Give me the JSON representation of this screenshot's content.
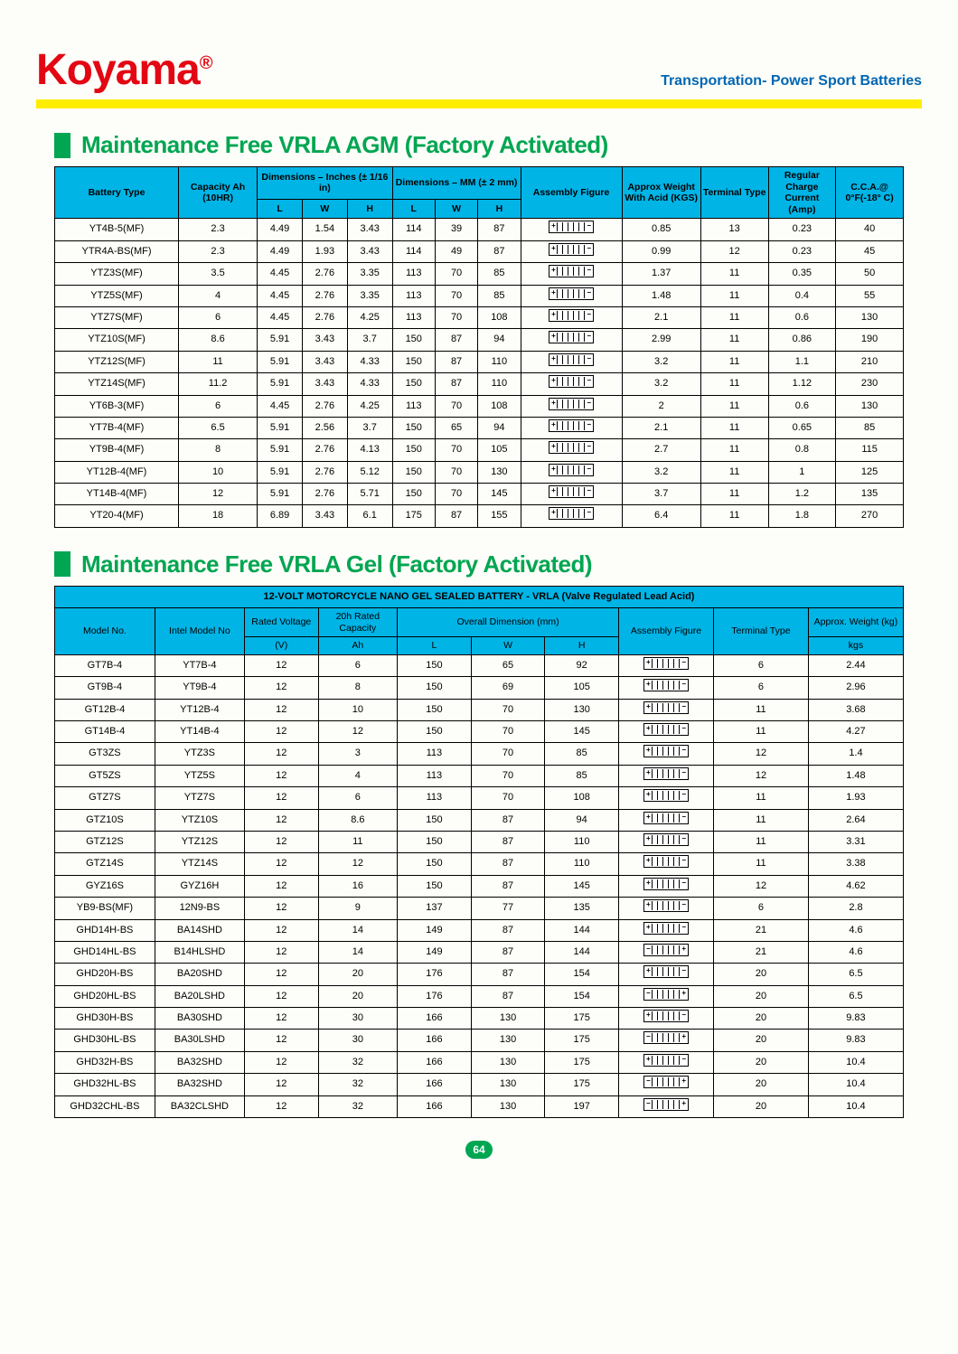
{
  "brand": "Koyama",
  "brand_symbol": "®",
  "tagline": "Transportation- Power Sport Batteries",
  "page_number": "64",
  "colors": {
    "brand_red": "#e30613",
    "tagline_blue": "#0066b3",
    "yellow_bar": "#ffed00",
    "green": "#00a651",
    "header_cyan": "#00b4e6"
  },
  "section1": {
    "title": "Maintenance Free VRLA AGM (Factory Activated)",
    "headers": {
      "battery_type": "Battery Type",
      "capacity": "Capacity Ah (10HR)",
      "dim_in": "Dimensions – Inches (± 1/16 in)",
      "dim_mm": "Dimensions – MM (± 2 mm)",
      "L": "L",
      "W": "W",
      "H": "H",
      "assembly": "Assembly Figure",
      "weight": "Approx Weight With Acid (KGS)",
      "terminal": "Terminal Type",
      "charge": "Regular Charge Current (Amp)",
      "cca": "C.C.A.@ 0°F(-18° C)"
    },
    "rows": [
      {
        "type": "YT4B-5(MF)",
        "cap": "2.3",
        "li": "4.49",
        "wi": "1.54",
        "hi": "3.43",
        "lm": "114",
        "wm": "39",
        "hm": "87",
        "fig": "lr",
        "wt": "0.85",
        "term": "13",
        "chg": "0.23",
        "cca": "40"
      },
      {
        "type": "YTR4A-BS(MF)",
        "cap": "2.3",
        "li": "4.49",
        "wi": "1.93",
        "hi": "3.43",
        "lm": "114",
        "wm": "49",
        "hm": "87",
        "fig": "lr",
        "wt": "0.99",
        "term": "12",
        "chg": "0.23",
        "cca": "45"
      },
      {
        "type": "YTZ3S(MF)",
        "cap": "3.5",
        "li": "4.45",
        "wi": "2.76",
        "hi": "3.35",
        "lm": "113",
        "wm": "70",
        "hm": "85",
        "fig": "lr",
        "wt": "1.37",
        "term": "11",
        "chg": "0.35",
        "cca": "50"
      },
      {
        "type": "YTZ5S(MF)",
        "cap": "4",
        "li": "4.45",
        "wi": "2.76",
        "hi": "3.35",
        "lm": "113",
        "wm": "70",
        "hm": "85",
        "fig": "lr",
        "wt": "1.48",
        "term": "11",
        "chg": "0.4",
        "cca": "55"
      },
      {
        "type": "YTZ7S(MF)",
        "cap": "6",
        "li": "4.45",
        "wi": "2.76",
        "hi": "4.25",
        "lm": "113",
        "wm": "70",
        "hm": "108",
        "fig": "lr",
        "wt": "2.1",
        "term": "11",
        "chg": "0.6",
        "cca": "130"
      },
      {
        "type": "YTZ10S(MF)",
        "cap": "8.6",
        "li": "5.91",
        "wi": "3.43",
        "hi": "3.7",
        "lm": "150",
        "wm": "87",
        "hm": "94",
        "fig": "lr",
        "wt": "2.99",
        "term": "11",
        "chg": "0.86",
        "cca": "190"
      },
      {
        "type": "YTZ12S(MF)",
        "cap": "11",
        "li": "5.91",
        "wi": "3.43",
        "hi": "4.33",
        "lm": "150",
        "wm": "87",
        "hm": "110",
        "fig": "lr",
        "wt": "3.2",
        "term": "11",
        "chg": "1.1",
        "cca": "210"
      },
      {
        "type": "YTZ14S(MF)",
        "cap": "11.2",
        "li": "5.91",
        "wi": "3.43",
        "hi": "4.33",
        "lm": "150",
        "wm": "87",
        "hm": "110",
        "fig": "lr",
        "wt": "3.2",
        "term": "11",
        "chg": "1.12",
        "cca": "230"
      },
      {
        "type": "YT6B-3(MF)",
        "cap": "6",
        "li": "4.45",
        "wi": "2.76",
        "hi": "4.25",
        "lm": "113",
        "wm": "70",
        "hm": "108",
        "fig": "lr",
        "wt": "2",
        "term": "11",
        "chg": "0.6",
        "cca": "130"
      },
      {
        "type": "YT7B-4(MF)",
        "cap": "6.5",
        "li": "5.91",
        "wi": "2.56",
        "hi": "3.7",
        "lm": "150",
        "wm": "65",
        "hm": "94",
        "fig": "lr",
        "wt": "2.1",
        "term": "11",
        "chg": "0.65",
        "cca": "85"
      },
      {
        "type": "YT9B-4(MF)",
        "cap": "8",
        "li": "5.91",
        "wi": "2.76",
        "hi": "4.13",
        "lm": "150",
        "wm": "70",
        "hm": "105",
        "fig": "lr",
        "wt": "2.7",
        "term": "11",
        "chg": "0.8",
        "cca": "115"
      },
      {
        "type": "YT12B-4(MF)",
        "cap": "10",
        "li": "5.91",
        "wi": "2.76",
        "hi": "5.12",
        "lm": "150",
        "wm": "70",
        "hm": "130",
        "fig": "lr",
        "wt": "3.2",
        "term": "11",
        "chg": "1",
        "cca": "125"
      },
      {
        "type": "YT14B-4(MF)",
        "cap": "12",
        "li": "5.91",
        "wi": "2.76",
        "hi": "5.71",
        "lm": "150",
        "wm": "70",
        "hm": "145",
        "fig": "lr",
        "wt": "3.7",
        "term": "11",
        "chg": "1.2",
        "cca": "135"
      },
      {
        "type": "YT20-4(MF)",
        "cap": "18",
        "li": "6.89",
        "wi": "3.43",
        "hi": "6.1",
        "lm": "175",
        "wm": "87",
        "hm": "155",
        "fig": "lr",
        "wt": "6.4",
        "term": "11",
        "chg": "1.8",
        "cca": "270"
      }
    ]
  },
  "section2": {
    "title": "Maintenance Free VRLA Gel (Factory Activated)",
    "banner": "12-VOLT MOTORCYCLE NANO GEL SEALED BATTERY - VRLA (Valve Regulated Lead Acid)",
    "headers": {
      "model": "Model No.",
      "intel": "Intel Model No",
      "voltage": "Rated Voltage",
      "capacity": "20h Rated Capacity",
      "dim": "Overall Dimension (mm)",
      "assembly": "Assembly Figure",
      "terminal": "Terminal Type",
      "weight": "Approx. Weight (kg)",
      "V": "(V)",
      "Ah": "Ah",
      "L": "L",
      "W": "W",
      "H": "H",
      "kgs": "kgs"
    },
    "rows": [
      {
        "m": "GT7B-4",
        "i": "YT7B-4",
        "v": "12",
        "ah": "6",
        "l": "150",
        "w": "65",
        "h": "92",
        "fig": "lr",
        "t": "6",
        "wt": "2.44"
      },
      {
        "m": "GT9B-4",
        "i": "YT9B-4",
        "v": "12",
        "ah": "8",
        "l": "150",
        "w": "69",
        "h": "105",
        "fig": "lr",
        "t": "6",
        "wt": "2.96"
      },
      {
        "m": "GT12B-4",
        "i": "YT12B-4",
        "v": "12",
        "ah": "10",
        "l": "150",
        "w": "70",
        "h": "130",
        "fig": "lr",
        "t": "11",
        "wt": "3.68"
      },
      {
        "m": "GT14B-4",
        "i": "YT14B-4",
        "v": "12",
        "ah": "12",
        "l": "150",
        "w": "70",
        "h": "145",
        "fig": "lr",
        "t": "11",
        "wt": "4.27"
      },
      {
        "m": "GT3ZS",
        "i": "YTZ3S",
        "v": "12",
        "ah": "3",
        "l": "113",
        "w": "70",
        "h": "85",
        "fig": "lr",
        "t": "12",
        "wt": "1.4"
      },
      {
        "m": "GT5ZS",
        "i": "YTZ5S",
        "v": "12",
        "ah": "4",
        "l": "113",
        "w": "70",
        "h": "85",
        "fig": "lr",
        "t": "12",
        "wt": "1.48"
      },
      {
        "m": "GTZ7S",
        "i": "YTZ7S",
        "v": "12",
        "ah": "6",
        "l": "113",
        "w": "70",
        "h": "108",
        "fig": "lr",
        "t": "11",
        "wt": "1.93"
      },
      {
        "m": "GTZ10S",
        "i": "YTZ10S",
        "v": "12",
        "ah": "8.6",
        "l": "150",
        "w": "87",
        "h": "94",
        "fig": "lr",
        "t": "11",
        "wt": "2.64"
      },
      {
        "m": "GTZ12S",
        "i": "YTZ12S",
        "v": "12",
        "ah": "11",
        "l": "150",
        "w": "87",
        "h": "110",
        "fig": "lr",
        "t": "11",
        "wt": "3.31"
      },
      {
        "m": "GTZ14S",
        "i": "YTZ14S",
        "v": "12",
        "ah": "12",
        "l": "150",
        "w": "87",
        "h": "110",
        "fig": "lr",
        "t": "11",
        "wt": "3.38"
      },
      {
        "m": "GYZ16S",
        "i": "GYZ16H",
        "v": "12",
        "ah": "16",
        "l": "150",
        "w": "87",
        "h": "145",
        "fig": "lr",
        "t": "12",
        "wt": "4.62"
      },
      {
        "m": "YB9-BS(MF)",
        "i": "12N9-BS",
        "v": "12",
        "ah": "9",
        "l": "137",
        "w": "77",
        "h": "135",
        "fig": "lr",
        "t": "6",
        "wt": "2.8"
      },
      {
        "m": "GHD14H-BS",
        "i": "BA14SHD",
        "v": "12",
        "ah": "14",
        "l": "149",
        "w": "87",
        "h": "144",
        "fig": "lr",
        "t": "21",
        "wt": "4.6"
      },
      {
        "m": "GHD14HL-BS",
        "i": "B14HLSHD",
        "v": "12",
        "ah": "14",
        "l": "149",
        "w": "87",
        "h": "144",
        "fig": "rl",
        "t": "21",
        "wt": "4.6"
      },
      {
        "m": "GHD20H-BS",
        "i": "BA20SHD",
        "v": "12",
        "ah": "20",
        "l": "176",
        "w": "87",
        "h": "154",
        "fig": "lr",
        "t": "20",
        "wt": "6.5"
      },
      {
        "m": "GHD20HL-BS",
        "i": "BA20LSHD",
        "v": "12",
        "ah": "20",
        "l": "176",
        "w": "87",
        "h": "154",
        "fig": "rl",
        "t": "20",
        "wt": "6.5"
      },
      {
        "m": "GHD30H-BS",
        "i": "BA30SHD",
        "v": "12",
        "ah": "30",
        "l": "166",
        "w": "130",
        "h": "175",
        "fig": "lr",
        "t": "20",
        "wt": "9.83"
      },
      {
        "m": "GHD30HL-BS",
        "i": "BA30LSHD",
        "v": "12",
        "ah": "30",
        "l": "166",
        "w": "130",
        "h": "175",
        "fig": "rl",
        "t": "20",
        "wt": "9.83"
      },
      {
        "m": "GHD32H-BS",
        "i": "BA32SHD",
        "v": "12",
        "ah": "32",
        "l": "166",
        "w": "130",
        "h": "175",
        "fig": "lr",
        "t": "20",
        "wt": "10.4"
      },
      {
        "m": "GHD32HL-BS",
        "i": "BA32SHD",
        "v": "12",
        "ah": "32",
        "l": "166",
        "w": "130",
        "h": "175",
        "fig": "rl",
        "t": "20",
        "wt": "10.4"
      },
      {
        "m": "GHD32CHL-BS",
        "i": "BA32CLSHD",
        "v": "12",
        "ah": "32",
        "l": "166",
        "w": "130",
        "h": "197",
        "fig": "rl",
        "t": "20",
        "wt": "10.4"
      }
    ]
  }
}
